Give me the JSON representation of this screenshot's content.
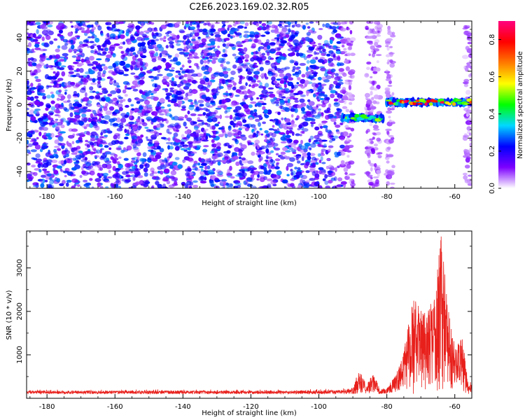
{
  "figure_title": "C2E6.2023.169.02.32.R05",
  "colors": {
    "snr_line": "#e8201c",
    "spectro_bg": "#ffffff"
  },
  "chart_data": [
    {
      "type": "heatmap",
      "name": "spectrogram",
      "xlabel": "Height of straight line (km)",
      "ylabel": "Frequency (Hz)",
      "xlim": [
        -186,
        -55
      ],
      "ylim": [
        -50,
        50
      ],
      "x_ticks": [
        -180,
        -160,
        -140,
        -120,
        -100,
        -80,
        -60
      ],
      "y_ticks": [
        -40,
        -20,
        0,
        20,
        40
      ],
      "x_tick_labels": [
        "-180",
        "-160",
        "-140",
        "-120",
        "-100",
        "-80",
        "-60"
      ],
      "y_tick_labels": [
        "-40",
        "-20",
        "0",
        "20",
        "40"
      ],
      "noise_regions": [
        {
          "x_range": [
            -186,
            -93
          ],
          "y_range": [
            -50,
            50
          ],
          "amplitude_range": [
            0.05,
            0.3
          ]
        },
        {
          "x_range": [
            -93,
            -90
          ],
          "y_range": [
            -50,
            50
          ],
          "amplitude_range": [
            0.03,
            0.12
          ]
        },
        {
          "x_range": [
            -86,
            -82
          ],
          "y_range": [
            -50,
            50
          ],
          "amplitude_range": [
            0.03,
            0.12
          ]
        },
        {
          "x_range": [
            -80,
            -78
          ],
          "y_range": [
            -50,
            50
          ],
          "amplitude_range": [
            0.03,
            0.1
          ]
        },
        {
          "x_range": [
            -57,
            -55
          ],
          "y_range": [
            -50,
            50
          ],
          "amplitude_range": [
            0.03,
            0.1
          ]
        }
      ],
      "signal_tracks": [
        {
          "x_range": [
            -93,
            -81
          ],
          "freq_center": -8,
          "freq_width": 5,
          "peak_amplitude": 0.55
        },
        {
          "x_range": [
            -80,
            -55
          ],
          "freq_center": 1.5,
          "freq_width": 5,
          "peak_amplitude": 0.9
        }
      ],
      "colorbar": {
        "label": "Normalized spectral amplitude",
        "range": [
          0.0,
          0.9
        ],
        "ticks": [
          0.0,
          0.2,
          0.4,
          0.6,
          0.8
        ],
        "tick_labels": [
          "0.0",
          "0.2",
          "0.4",
          "0.6",
          "0.8"
        ],
        "colormap": [
          "#ffffff",
          "#7d00ff",
          "#0000ff",
          "#00d8ff",
          "#00ff00",
          "#ffff00",
          "#ff7a00",
          "#ff0000",
          "#ff0080"
        ]
      }
    },
    {
      "type": "line",
      "name": "snr",
      "xlabel": "Height of straight line (km)",
      "ylabel": "SNR (10 * v/v)",
      "xlim": [
        -186,
        -55
      ],
      "ylim": [
        0,
        3850
      ],
      "x_ticks": [
        -180,
        -160,
        -140,
        -120,
        -100,
        -80,
        -60
      ],
      "y_ticks": [
        1000,
        2000,
        3000
      ],
      "x_tick_labels": [
        "-180",
        "-160",
        "-140",
        "-120",
        "-100",
        "-80",
        "-60"
      ],
      "y_tick_labels": [
        "1000",
        "2000",
        "3000"
      ],
      "envelope_points": [
        {
          "x": -186,
          "y": 200
        },
        {
          "x": -160,
          "y": 200
        },
        {
          "x": -140,
          "y": 210
        },
        {
          "x": -120,
          "y": 200
        },
        {
          "x": -100,
          "y": 210
        },
        {
          "x": -92,
          "y": 230
        },
        {
          "x": -90,
          "y": 300
        },
        {
          "x": -88,
          "y": 650
        },
        {
          "x": -86,
          "y": 350
        },
        {
          "x": -84,
          "y": 550
        },
        {
          "x": -82,
          "y": 250
        },
        {
          "x": -80,
          "y": 300
        },
        {
          "x": -78,
          "y": 450
        },
        {
          "x": -76,
          "y": 800
        },
        {
          "x": -74,
          "y": 1700
        },
        {
          "x": -72,
          "y": 2300
        },
        {
          "x": -70,
          "y": 2100
        },
        {
          "x": -68,
          "y": 2000
        },
        {
          "x": -66,
          "y": 2400
        },
        {
          "x": -64,
          "y": 3800
        },
        {
          "x": -62,
          "y": 2200
        },
        {
          "x": -60,
          "y": 1200
        },
        {
          "x": -58,
          "y": 1500
        },
        {
          "x": -56,
          "y": 350
        },
        {
          "x": -55,
          "y": 400
        }
      ],
      "noise_floor": 100
    }
  ]
}
